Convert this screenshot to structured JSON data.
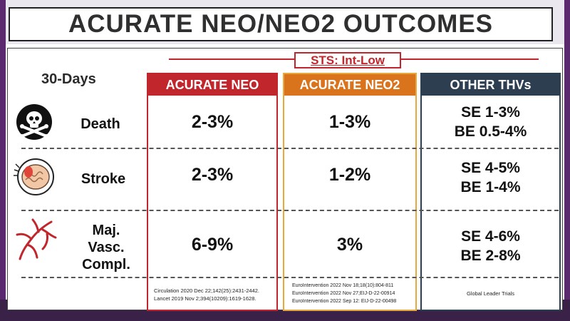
{
  "title": "ACURATE NEO/NEO2 OUTCOMES",
  "sts_label": "STS: Int-Low",
  "period_label": "30-Days",
  "columns": [
    "ACURATE NEO",
    "ACURATE NEO2",
    "OTHER THVs"
  ],
  "rows": [
    {
      "label": "Death",
      "icon": "skull-crossbones-icon",
      "neo": "2-3%",
      "neo2": "1-3%",
      "other": [
        "SE 1-3%",
        "BE 0.5-4%"
      ]
    },
    {
      "label": "Stroke",
      "icon": "brain-icon",
      "neo": "2-3%",
      "neo2": "1-2%",
      "other": [
        "SE 4-5%",
        "BE 1-4%"
      ]
    },
    {
      "label_lines": [
        "Maj.",
        "Vasc.",
        "Compl."
      ],
      "icon": "blood-vessel-icon",
      "neo": "6-9%",
      "neo2": "3%",
      "other": [
        "SE 4-6%",
        "BE 2-8%"
      ]
    }
  ],
  "references": {
    "neo": [
      "Circulation 2020 Dec 22;142(25):2431-2442.",
      "Lancet 2019 Nov 2;394(10209):1619-1628."
    ],
    "neo2": [
      "EuroIntervention 2022 Nov 18;18(10):804-811",
      "EuroIntervention 2022 Nov 27;EIJ-D-22-00914",
      "EuroIntervention 2022 Sep 12: EIJ-D-22-00498"
    ],
    "other": [
      "Global Leader Trials"
    ]
  },
  "colors": {
    "neo": "#c0262c",
    "neo2_header": "#d9731c",
    "neo2_border": "#e8a93a",
    "other": "#2c3e50",
    "frame": "#5b2a6e"
  }
}
